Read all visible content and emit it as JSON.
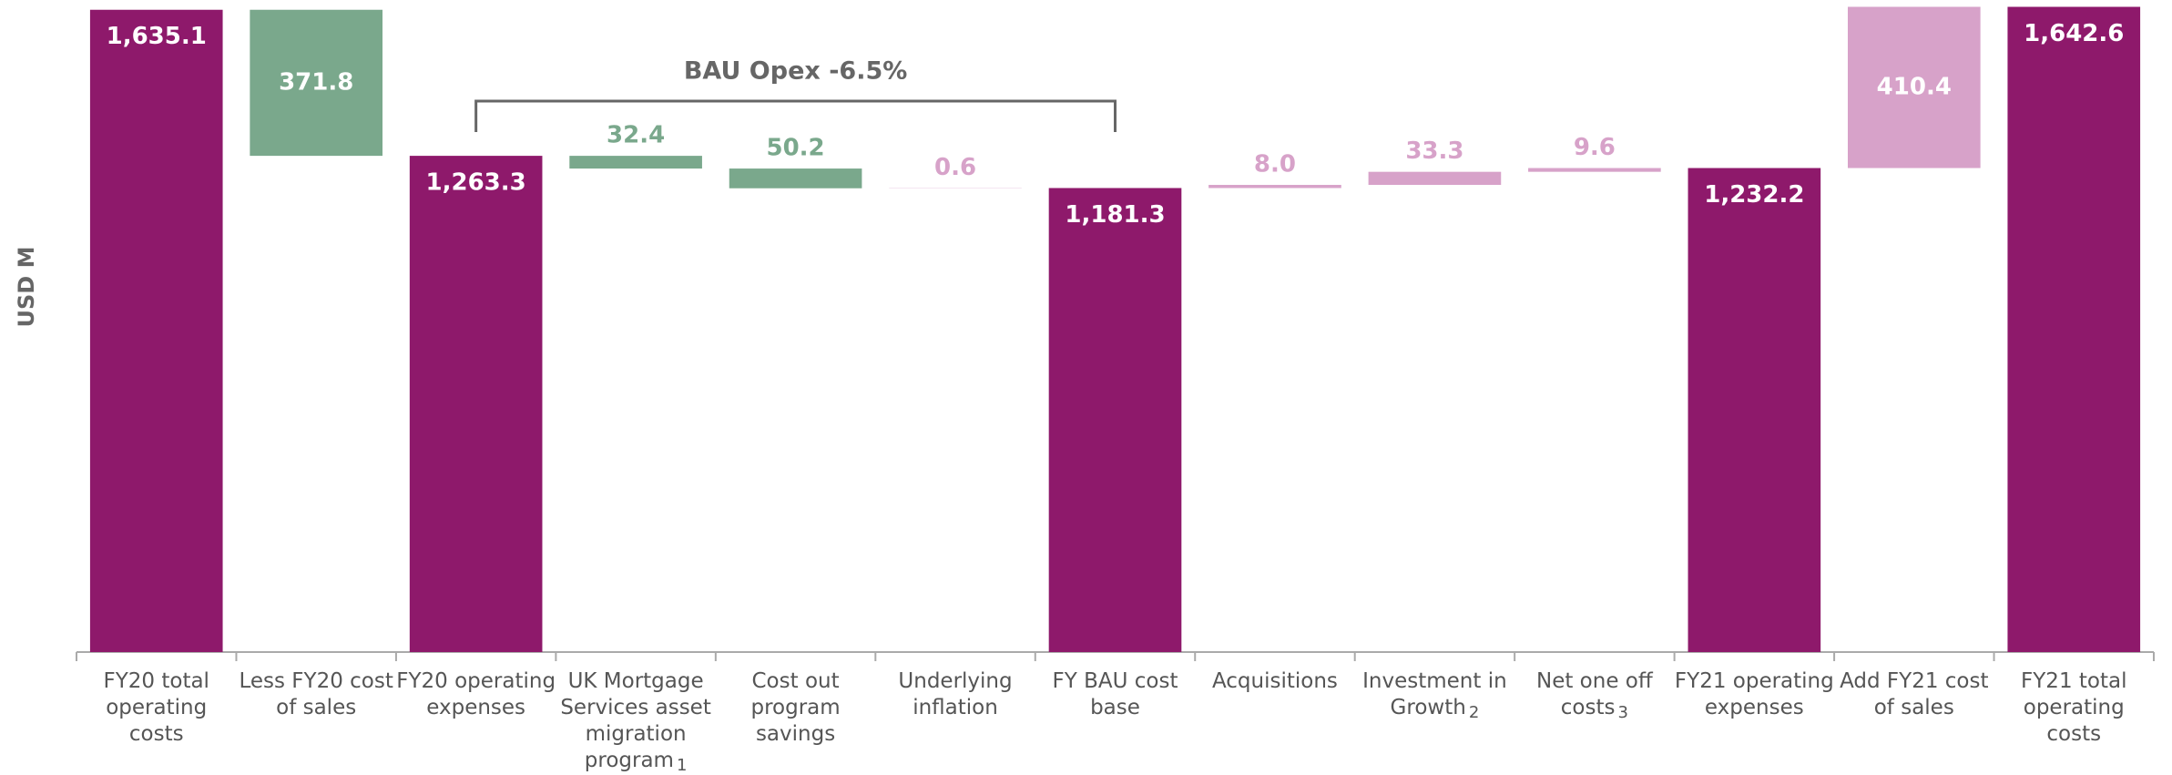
{
  "chart_data": {
    "type": "waterfall",
    "y_label": "USD M",
    "annotation": "BAU Opex -6.5%",
    "annotation_span": [
      2,
      6
    ],
    "categories": [
      "FY20 total operating costs",
      "Less FY20 cost of sales",
      "FY20 operating expenses",
      "UK Mortgage Services asset migration program",
      "Cost out program savings",
      "Underlying inflation",
      "FY BAU cost base",
      "Acquisitions",
      "Investment in Growth",
      "Net one off costs",
      "FY21 operating expenses",
      "Add FY21 cost of sales",
      "FY21 total operating costs"
    ],
    "category_notes": [
      null,
      null,
      null,
      "1",
      null,
      null,
      null,
      null,
      "2",
      "3",
      null,
      null,
      null
    ],
    "measure": [
      "total",
      "relative",
      "total",
      "relative",
      "relative",
      "relative",
      "total",
      "relative",
      "relative",
      "relative",
      "total",
      "relative",
      "total"
    ],
    "values": [
      1635.1,
      -371.8,
      1263.3,
      -32.4,
      -50.2,
      0.6,
      1181.3,
      8.0,
      33.3,
      9.6,
      1232.2,
      410.4,
      1642.6
    ],
    "value_labels": [
      "1,635.1",
      "371.8",
      "1,263.3",
      "32.4",
      "50.2",
      "0.6",
      "1,181.3",
      "8.0",
      "33.3",
      "9.6",
      "1,232.2",
      "410.4",
      "1,642.6"
    ],
    "colors": {
      "total": "#8e196b",
      "decrease": "#7aa88c",
      "increase": "#d7a2c9"
    },
    "ylim": [
      0,
      1660
    ]
  }
}
